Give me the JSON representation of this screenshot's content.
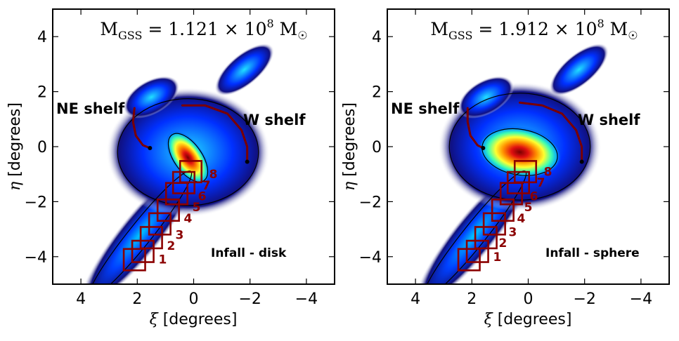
{
  "chart_data": [
    {
      "type": "heatmap",
      "title_prefix": "M",
      "title_sub": "GSS",
      "title_value": " = 1.121 × 10",
      "title_exp": "8",
      "title_unit": " M",
      "title_sun": "☉",
      "xlabel_sym": "ξ",
      "xlabel_unit": " [degrees]",
      "ylabel_sym": "η",
      "ylabel_unit": " [degrees]",
      "xlim": [
        5,
        -5
      ],
      "ylim": [
        -5,
        5
      ],
      "xticks": [
        4,
        2,
        0,
        -2,
        -4
      ],
      "yticks": [
        4,
        2,
        0,
        -2,
        -4
      ],
      "xtick_labels": [
        "4",
        "2",
        "0",
        "−2",
        "−4"
      ],
      "ytick_labels": [
        "4",
        "2",
        "0",
        "−2",
        "−4"
      ],
      "model_label": "Infall - disk",
      "ne_shelf_label": "NE shelf",
      "w_shelf_label": "W shelf",
      "core": {
        "x": 0.2,
        "y": -0.4
      },
      "fields": [
        {
          "label": "1",
          "x": 2.1,
          "y": -4.1
        },
        {
          "label": "2",
          "x": 1.8,
          "y": -3.8
        },
        {
          "label": "3",
          "x": 1.5,
          "y": -3.3
        },
        {
          "label": "4",
          "x": 1.2,
          "y": -2.8
        },
        {
          "label": "5",
          "x": 0.9,
          "y": -2.3
        },
        {
          "label": "6",
          "x": 0.6,
          "y": -1.7
        },
        {
          "label": "7",
          "x": 0.35,
          "y": -1.3
        },
        {
          "label": "8",
          "x": 0.1,
          "y": -0.9
        }
      ],
      "field_label_positions": [
        {
          "x": 1.1,
          "y": -4.1
        },
        {
          "x": 0.8,
          "y": -3.6
        },
        {
          "x": 0.5,
          "y": -3.2
        },
        {
          "x": 0.2,
          "y": -2.6
        },
        {
          "x": -0.1,
          "y": -2.2
        },
        {
          "x": -0.3,
          "y": -1.8
        },
        {
          "x": -0.45,
          "y": -1.4
        },
        {
          "x": -0.7,
          "y": -1.0
        }
      ],
      "ne_shelf_arc": [
        [
          2.1,
          1.4
        ],
        [
          2.15,
          0.9
        ],
        [
          2.05,
          0.4
        ],
        [
          1.8,
          0.05
        ],
        [
          1.55,
          -0.05
        ]
      ],
      "w_shelf_arc": [
        [
          0.4,
          1.5
        ],
        [
          -0.4,
          1.5
        ],
        [
          -1.2,
          1.2
        ],
        [
          -1.7,
          0.6
        ],
        [
          -1.9,
          0.0
        ],
        [
          -1.9,
          -0.55
        ]
      ]
    },
    {
      "type": "heatmap",
      "title_prefix": "M",
      "title_sub": "GSS",
      "title_value": " = 1.912 × 10",
      "title_exp": "8",
      "title_unit": " M",
      "title_sun": "☉",
      "xlabel_sym": "ξ",
      "xlabel_unit": " [degrees]",
      "ylabel_sym": "η",
      "ylabel_unit": " [degrees]",
      "xlim": [
        5,
        -5
      ],
      "ylim": [
        -5,
        5
      ],
      "xticks": [
        4,
        2,
        0,
        -2,
        -4
      ],
      "yticks": [
        4,
        2,
        0,
        -2,
        -4
      ],
      "xtick_labels": [
        "4",
        "2",
        "0",
        "−2",
        "−4"
      ],
      "ytick_labels": [
        "4",
        "2",
        "0",
        "−2",
        "−4"
      ],
      "model_label": "Infall - sphere",
      "ne_shelf_label": "NE shelf",
      "w_shelf_label": "W shelf",
      "core": {
        "x": 0.3,
        "y": -0.2
      },
      "fields": [
        {
          "label": "1",
          "x": 2.1,
          "y": -4.1
        },
        {
          "label": "2",
          "x": 1.8,
          "y": -3.8
        },
        {
          "label": "3",
          "x": 1.5,
          "y": -3.3
        },
        {
          "label": "4",
          "x": 1.2,
          "y": -2.8
        },
        {
          "label": "5",
          "x": 0.9,
          "y": -2.3
        },
        {
          "label": "6",
          "x": 0.6,
          "y": -1.7
        },
        {
          "label": "7",
          "x": 0.35,
          "y": -1.3
        },
        {
          "label": "8",
          "x": 0.1,
          "y": -0.9
        }
      ],
      "field_label_positions": [
        {
          "x": 1.1,
          "y": -4.0
        },
        {
          "x": 0.9,
          "y": -3.5
        },
        {
          "x": 0.55,
          "y": -3.1
        },
        {
          "x": 0.25,
          "y": -2.6
        },
        {
          "x": 0.0,
          "y": -2.2
        },
        {
          "x": -0.2,
          "y": -1.8
        },
        {
          "x": -0.45,
          "y": -1.3
        },
        {
          "x": -0.7,
          "y": -0.9
        }
      ],
      "ne_shelf_arc": [
        [
          2.15,
          1.4
        ],
        [
          2.15,
          0.9
        ],
        [
          2.05,
          0.4
        ],
        [
          1.8,
          0.05
        ],
        [
          1.6,
          -0.05
        ]
      ],
      "w_shelf_arc": [
        [
          0.3,
          1.6
        ],
        [
          -0.5,
          1.5
        ],
        [
          -1.2,
          1.2
        ],
        [
          -1.7,
          0.6
        ],
        [
          -1.9,
          0.0
        ],
        [
          -1.9,
          -0.55
        ]
      ]
    }
  ]
}
